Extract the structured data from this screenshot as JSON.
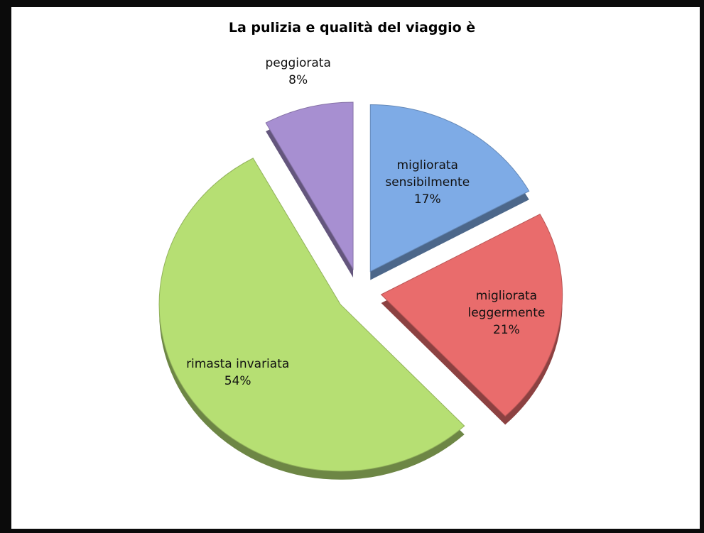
{
  "chart_data": {
    "type": "pie",
    "title": "La pulizia e qualità del viaggio è",
    "categories": [
      "migliorata sensibilmente",
      "migliorata leggermente",
      "rimasta invariata",
      "peggiorata"
    ],
    "values": [
      17,
      21,
      54,
      8
    ],
    "value_labels": [
      "17%",
      "21%",
      "54%",
      "8%"
    ],
    "colors": [
      "#7eabe6",
      "#e96c6c",
      "#b6df73",
      "#a78fd1"
    ]
  }
}
